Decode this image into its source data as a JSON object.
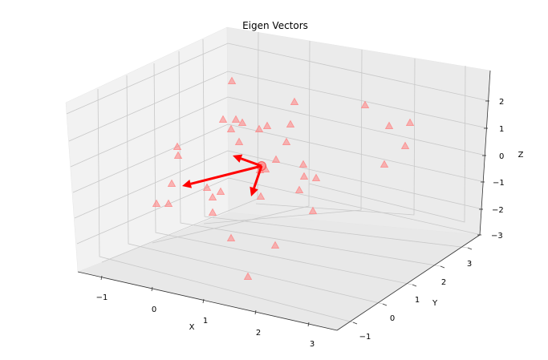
{
  "chart_data": {
    "type": "scatter",
    "title": "Eigen Vectors",
    "xlabel": "X",
    "ylabel": "Y",
    "zlabel": "Z",
    "x_ticks": [
      "−1",
      "0",
      "1",
      "2",
      "3"
    ],
    "y_ticks": [
      "−1",
      "0",
      "1",
      "2",
      "3"
    ],
    "z_ticks": [
      "2",
      "1",
      "0",
      "−1",
      "−2",
      "−3"
    ],
    "marker_color": "#ff8080",
    "arrow_color": "#ff0000",
    "points_screen": [
      [
        289,
        101
      ],
      [
        367,
        127
      ],
      [
        455,
        131
      ],
      [
        278,
        149
      ],
      [
        294,
        149
      ],
      [
        302,
        153
      ],
      [
        323,
        161
      ],
      [
        333,
        157
      ],
      [
        362,
        155
      ],
      [
        288,
        161
      ],
      [
        485,
        157
      ],
      [
        511,
        153
      ],
      [
        298,
        177
      ],
      [
        357,
        177
      ],
      [
        505,
        182
      ],
      [
        221,
        183
      ],
      [
        222,
        194
      ],
      [
        344,
        199
      ],
      [
        479,
        205
      ],
      [
        378,
        205
      ],
      [
        331,
        211
      ],
      [
        324,
        212
      ],
      [
        379,
        220
      ],
      [
        394,
        222
      ],
      [
        214,
        229
      ],
      [
        258,
        234
      ],
      [
        373,
        237
      ],
      [
        275,
        239
      ],
      [
        265,
        246
      ],
      [
        325,
        245
      ],
      [
        210,
        254
      ],
      [
        195,
        254
      ],
      [
        390,
        263
      ],
      [
        265,
        265
      ],
      [
        288,
        297
      ],
      [
        343,
        306
      ],
      [
        309,
        345
      ]
    ],
    "mean_point_screen": [
      326,
      207
    ],
    "eigen_arrows_screen": [
      [
        [
          326,
          207
        ],
        [
          290,
          194
        ]
      ],
      [
        [
          326,
          207
        ],
        [
          227,
          232
        ]
      ],
      [
        [
          326,
          207
        ],
        [
          313,
          245
        ]
      ]
    ]
  }
}
